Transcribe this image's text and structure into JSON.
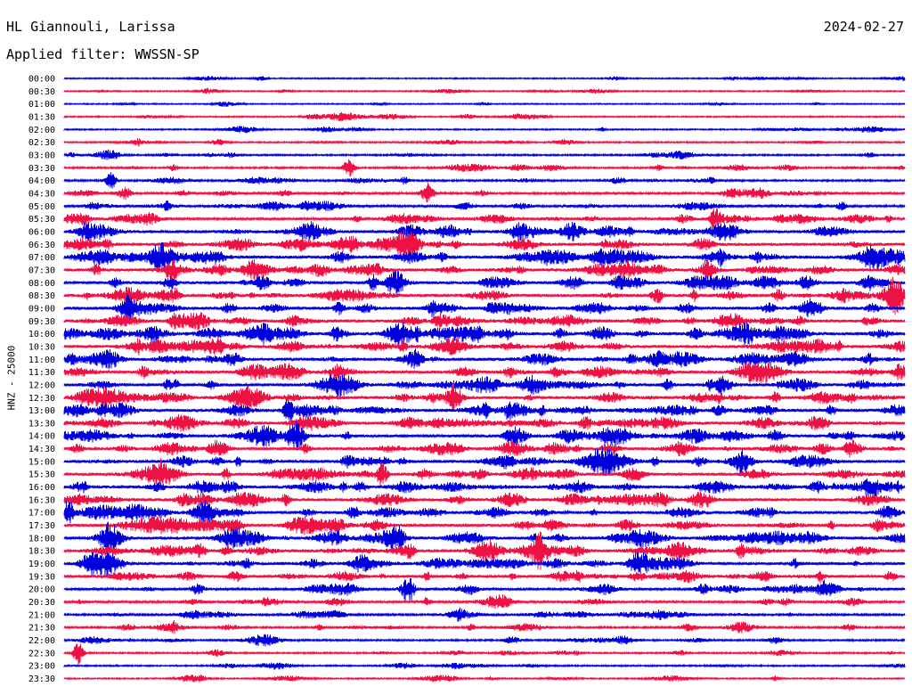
{
  "header": {
    "station": "HL Giannouli, Larissa",
    "date": "2024-02-27",
    "filter": "Applied filter: WWSSN-SP"
  },
  "chart_data": {
    "type": "line",
    "ylabel": "HNZ - 25000",
    "time_labels": [
      "00:00",
      "00:30",
      "01:00",
      "01:30",
      "02:00",
      "02:30",
      "03:00",
      "03:30",
      "04:00",
      "04:30",
      "05:00",
      "05:30",
      "06:00",
      "06:30",
      "07:00",
      "07:30",
      "08:00",
      "08:30",
      "09:00",
      "09:30",
      "10:00",
      "10:30",
      "11:00",
      "11:30",
      "12:00",
      "12:30",
      "13:00",
      "13:30",
      "14:00",
      "14:30",
      "15:00",
      "15:30",
      "16:00",
      "16:30",
      "17:00",
      "17:30",
      "18:00",
      "18:30",
      "19:00",
      "19:30",
      "20:00",
      "20:30",
      "21:00",
      "21:30",
      "22:00",
      "22:30",
      "23:00",
      "23:30"
    ],
    "colors": {
      "even": "#0000dd",
      "odd": "#ee1144"
    },
    "activity": [
      0.15,
      0.15,
      0.15,
      0.2,
      0.2,
      0.25,
      0.3,
      0.35,
      0.4,
      0.45,
      0.5,
      0.6,
      0.8,
      0.85,
      0.9,
      0.85,
      0.85,
      0.85,
      0.8,
      0.85,
      0.9,
      0.85,
      0.85,
      0.8,
      0.8,
      0.8,
      0.85,
      0.85,
      0.85,
      0.8,
      0.8,
      0.8,
      0.85,
      0.8,
      0.8,
      0.8,
      0.8,
      0.8,
      0.75,
      0.75,
      0.65,
      0.55,
      0.45,
      0.4,
      0.35,
      0.3,
      0.25,
      0.2
    ]
  }
}
